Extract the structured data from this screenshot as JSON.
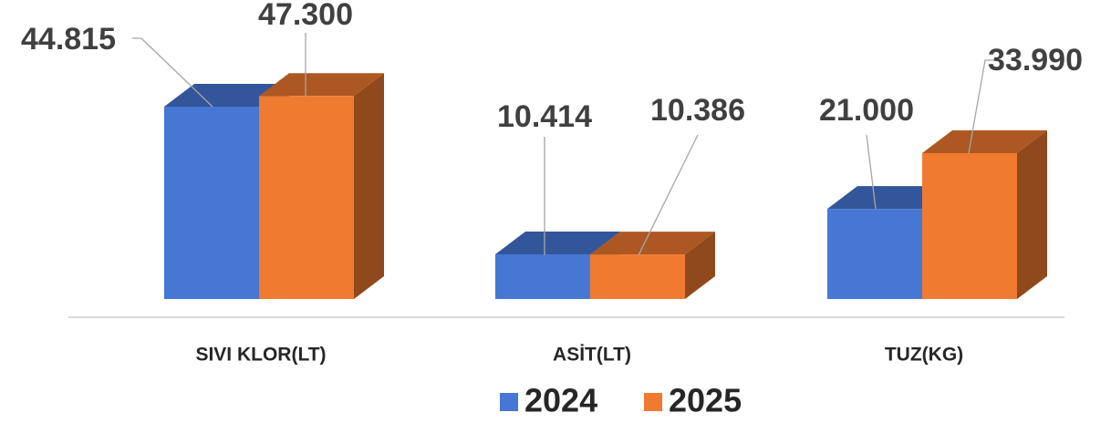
{
  "chart_data": {
    "type": "bar3d",
    "categories": [
      "SIVI KLOR(LT)",
      "ASİT(LT)",
      "TUZ(KG)"
    ],
    "series": [
      {
        "name": "2024",
        "color": "#4677d4",
        "values": [
          44815,
          10414,
          21000
        ],
        "value_labels": [
          "44.815",
          "10.414",
          "21.000"
        ]
      },
      {
        "name": "2025",
        "color": "#f07a30",
        "values": [
          47300,
          10386,
          33990
        ],
        "value_labels": [
          "47.300",
          "10.386",
          "33.990"
        ]
      }
    ],
    "legend": "bottom"
  }
}
